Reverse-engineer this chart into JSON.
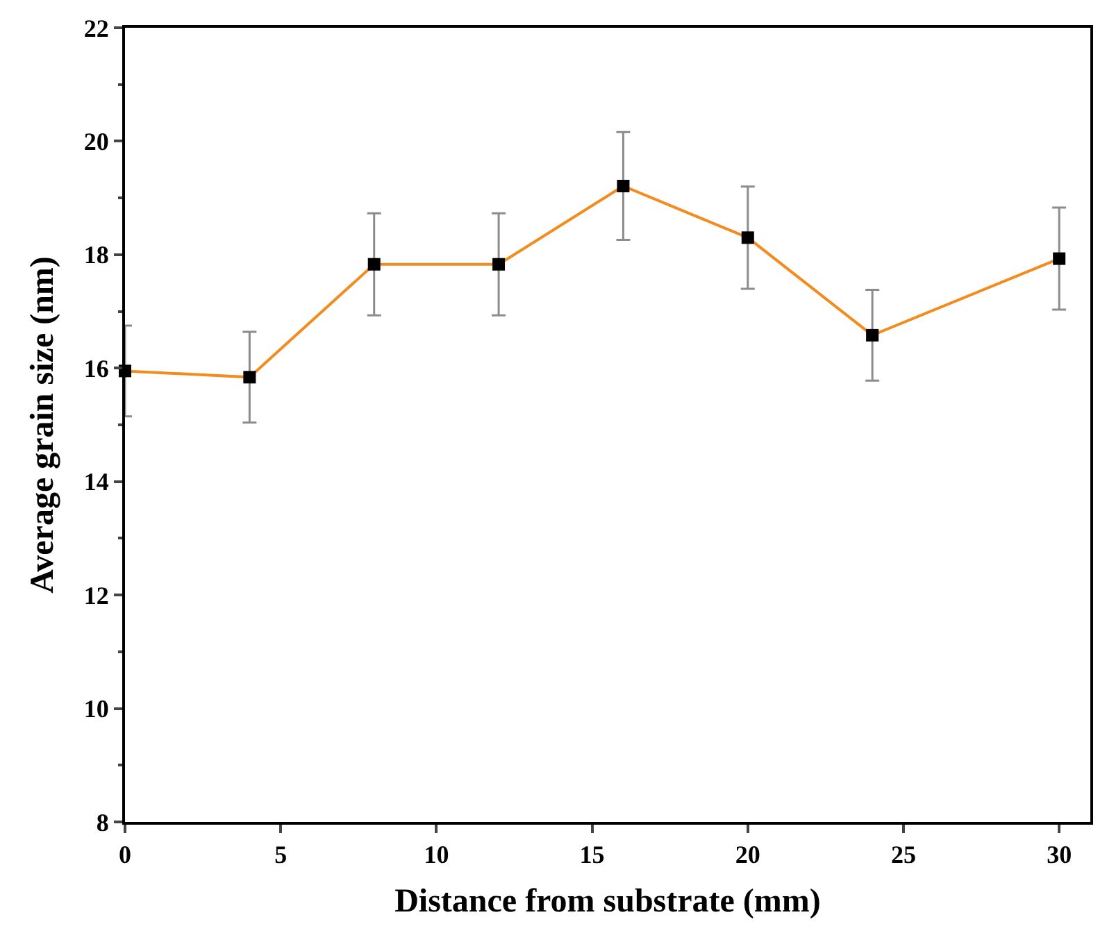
{
  "chart_data": {
    "type": "line",
    "xlabel": "Distance from substrate (mm)",
    "ylabel": "Average grain size (nm)",
    "x": [
      0,
      4,
      8,
      12,
      16,
      20,
      24,
      30
    ],
    "series": [
      {
        "color": "#f28c1e",
        "values": [
          15.95,
          15.84,
          17.83,
          17.83,
          19.21,
          18.3,
          16.58,
          17.93
        ],
        "errors": [
          0.8,
          0.8,
          0.9,
          0.9,
          0.95,
          0.9,
          0.8,
          0.9
        ]
      }
    ],
    "xlim": [
      0,
      31
    ],
    "xticks": [
      0,
      5,
      10,
      15,
      20,
      25,
      30
    ],
    "ylim": [
      8,
      22
    ],
    "yticks": [
      8,
      10,
      12,
      14,
      16,
      18,
      20,
      22
    ],
    "marker": "square",
    "line_style": "solid"
  }
}
